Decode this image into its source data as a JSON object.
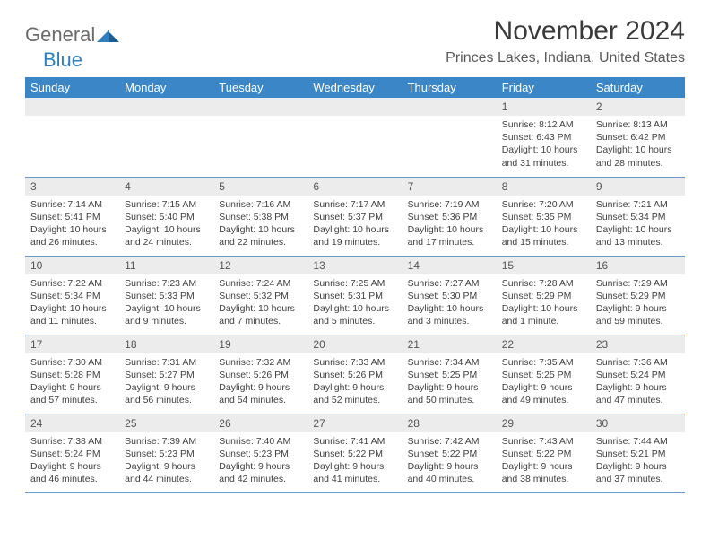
{
  "logo": {
    "part1": "General",
    "part2": "Blue"
  },
  "title": "November 2024",
  "location": "Princes Lakes, Indiana, United States",
  "colors": {
    "header_bg": "#3b86c7",
    "header_fg": "#ffffff",
    "daynum_bg": "#ececec",
    "row_border": "#6a99c4",
    "text": "#404040",
    "logo_gray": "#6b6b6b",
    "logo_blue": "#2d7fc1"
  },
  "weekdays": [
    "Sunday",
    "Monday",
    "Tuesday",
    "Wednesday",
    "Thursday",
    "Friday",
    "Saturday"
  ],
  "weeks": [
    [
      {
        "day": "",
        "lines": []
      },
      {
        "day": "",
        "lines": []
      },
      {
        "day": "",
        "lines": []
      },
      {
        "day": "",
        "lines": []
      },
      {
        "day": "",
        "lines": []
      },
      {
        "day": "1",
        "lines": [
          "Sunrise: 8:12 AM",
          "Sunset: 6:43 PM",
          "Daylight: 10 hours and 31 minutes."
        ]
      },
      {
        "day": "2",
        "lines": [
          "Sunrise: 8:13 AM",
          "Sunset: 6:42 PM",
          "Daylight: 10 hours and 28 minutes."
        ]
      }
    ],
    [
      {
        "day": "3",
        "lines": [
          "Sunrise: 7:14 AM",
          "Sunset: 5:41 PM",
          "Daylight: 10 hours and 26 minutes."
        ]
      },
      {
        "day": "4",
        "lines": [
          "Sunrise: 7:15 AM",
          "Sunset: 5:40 PM",
          "Daylight: 10 hours and 24 minutes."
        ]
      },
      {
        "day": "5",
        "lines": [
          "Sunrise: 7:16 AM",
          "Sunset: 5:38 PM",
          "Daylight: 10 hours and 22 minutes."
        ]
      },
      {
        "day": "6",
        "lines": [
          "Sunrise: 7:17 AM",
          "Sunset: 5:37 PM",
          "Daylight: 10 hours and 19 minutes."
        ]
      },
      {
        "day": "7",
        "lines": [
          "Sunrise: 7:19 AM",
          "Sunset: 5:36 PM",
          "Daylight: 10 hours and 17 minutes."
        ]
      },
      {
        "day": "8",
        "lines": [
          "Sunrise: 7:20 AM",
          "Sunset: 5:35 PM",
          "Daylight: 10 hours and 15 minutes."
        ]
      },
      {
        "day": "9",
        "lines": [
          "Sunrise: 7:21 AM",
          "Sunset: 5:34 PM",
          "Daylight: 10 hours and 13 minutes."
        ]
      }
    ],
    [
      {
        "day": "10",
        "lines": [
          "Sunrise: 7:22 AM",
          "Sunset: 5:34 PM",
          "Daylight: 10 hours and 11 minutes."
        ]
      },
      {
        "day": "11",
        "lines": [
          "Sunrise: 7:23 AM",
          "Sunset: 5:33 PM",
          "Daylight: 10 hours and 9 minutes."
        ]
      },
      {
        "day": "12",
        "lines": [
          "Sunrise: 7:24 AM",
          "Sunset: 5:32 PM",
          "Daylight: 10 hours and 7 minutes."
        ]
      },
      {
        "day": "13",
        "lines": [
          "Sunrise: 7:25 AM",
          "Sunset: 5:31 PM",
          "Daylight: 10 hours and 5 minutes."
        ]
      },
      {
        "day": "14",
        "lines": [
          "Sunrise: 7:27 AM",
          "Sunset: 5:30 PM",
          "Daylight: 10 hours and 3 minutes."
        ]
      },
      {
        "day": "15",
        "lines": [
          "Sunrise: 7:28 AM",
          "Sunset: 5:29 PM",
          "Daylight: 10 hours and 1 minute."
        ]
      },
      {
        "day": "16",
        "lines": [
          "Sunrise: 7:29 AM",
          "Sunset: 5:29 PM",
          "Daylight: 9 hours and 59 minutes."
        ]
      }
    ],
    [
      {
        "day": "17",
        "lines": [
          "Sunrise: 7:30 AM",
          "Sunset: 5:28 PM",
          "Daylight: 9 hours and 57 minutes."
        ]
      },
      {
        "day": "18",
        "lines": [
          "Sunrise: 7:31 AM",
          "Sunset: 5:27 PM",
          "Daylight: 9 hours and 56 minutes."
        ]
      },
      {
        "day": "19",
        "lines": [
          "Sunrise: 7:32 AM",
          "Sunset: 5:26 PM",
          "Daylight: 9 hours and 54 minutes."
        ]
      },
      {
        "day": "20",
        "lines": [
          "Sunrise: 7:33 AM",
          "Sunset: 5:26 PM",
          "Daylight: 9 hours and 52 minutes."
        ]
      },
      {
        "day": "21",
        "lines": [
          "Sunrise: 7:34 AM",
          "Sunset: 5:25 PM",
          "Daylight: 9 hours and 50 minutes."
        ]
      },
      {
        "day": "22",
        "lines": [
          "Sunrise: 7:35 AM",
          "Sunset: 5:25 PM",
          "Daylight: 9 hours and 49 minutes."
        ]
      },
      {
        "day": "23",
        "lines": [
          "Sunrise: 7:36 AM",
          "Sunset: 5:24 PM",
          "Daylight: 9 hours and 47 minutes."
        ]
      }
    ],
    [
      {
        "day": "24",
        "lines": [
          "Sunrise: 7:38 AM",
          "Sunset: 5:24 PM",
          "Daylight: 9 hours and 46 minutes."
        ]
      },
      {
        "day": "25",
        "lines": [
          "Sunrise: 7:39 AM",
          "Sunset: 5:23 PM",
          "Daylight: 9 hours and 44 minutes."
        ]
      },
      {
        "day": "26",
        "lines": [
          "Sunrise: 7:40 AM",
          "Sunset: 5:23 PM",
          "Daylight: 9 hours and 42 minutes."
        ]
      },
      {
        "day": "27",
        "lines": [
          "Sunrise: 7:41 AM",
          "Sunset: 5:22 PM",
          "Daylight: 9 hours and 41 minutes."
        ]
      },
      {
        "day": "28",
        "lines": [
          "Sunrise: 7:42 AM",
          "Sunset: 5:22 PM",
          "Daylight: 9 hours and 40 minutes."
        ]
      },
      {
        "day": "29",
        "lines": [
          "Sunrise: 7:43 AM",
          "Sunset: 5:22 PM",
          "Daylight: 9 hours and 38 minutes."
        ]
      },
      {
        "day": "30",
        "lines": [
          "Sunrise: 7:44 AM",
          "Sunset: 5:21 PM",
          "Daylight: 9 hours and 37 minutes."
        ]
      }
    ]
  ]
}
